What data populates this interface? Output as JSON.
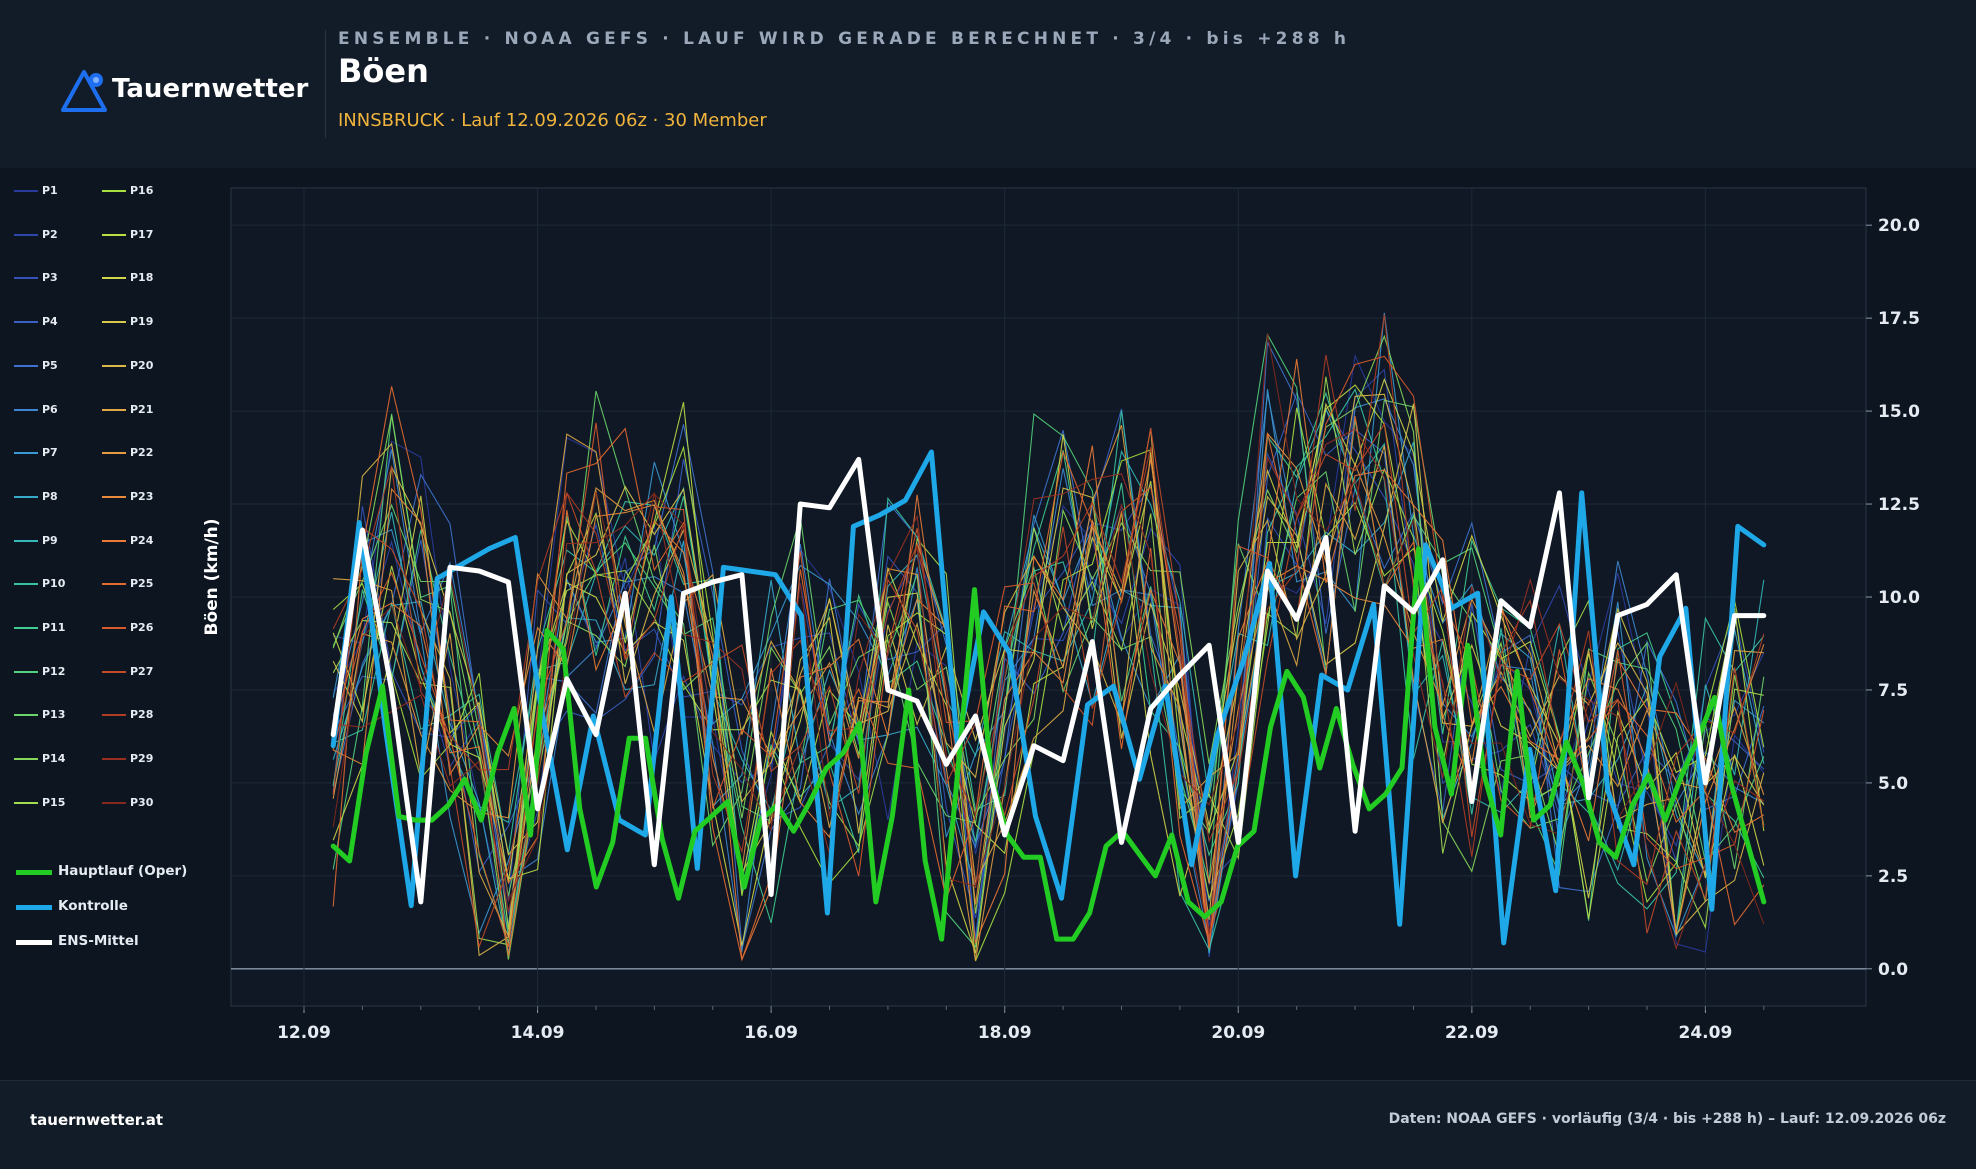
{
  "header": {
    "brand": "Tauernwetter",
    "kicker": "ENSEMBLE · NOAA GEFS · LAUF WIRD GERADE BERECHNET · 3/4 · bis +288 h",
    "title": "Böen",
    "subtitle": "INNSBRUCK · Lauf 12.09.2026 06z · 30 Member"
  },
  "colors": {
    "background": "#0d1520",
    "header_bg": "#121c29",
    "accent_orange": "#f0b43c",
    "oper": "#22cc22",
    "control": "#1fa8e8",
    "mean": "#ffffff",
    "logo_blue": "#1e6ff0"
  },
  "icons": {
    "logo": "triangle-logo-icon"
  },
  "footer": {
    "left": "tauernwetter.at",
    "right": "Daten: NOAA GEFS · vorläufig (3/4 · bis +288 h) – Lauf: 12.09.2026 06z"
  },
  "chart_data": {
    "type": "line",
    "x_unit": "hours since 12.09.2026 06z",
    "ylabel": "Böen (km/h)",
    "ylim": [
      -1,
      21
    ],
    "xlim": [
      -21,
      315
    ],
    "yticks": [
      "0.0",
      "2.5",
      "5.0",
      "7.5",
      "10.0",
      "12.5",
      "15.0",
      "17.5",
      "20.0"
    ],
    "ytick_values": [
      0,
      2.5,
      5,
      7.5,
      10,
      12.5,
      15,
      17.5,
      20
    ],
    "xticks": [
      "12.09",
      "14.09",
      "16.09",
      "18.09",
      "20.09",
      "22.09",
      "24.09"
    ],
    "xtick_values": [
      -6,
      42,
      90,
      138,
      186,
      234,
      282
    ],
    "grid": true,
    "legend_position": "left",
    "members": [
      "P1",
      "P2",
      "P3",
      "P4",
      "P5",
      "P6",
      "P7",
      "P8",
      "P9",
      "P10",
      "P11",
      "P12",
      "P13",
      "P14",
      "P15",
      "P16",
      "P17",
      "P18",
      "P19",
      "P20",
      "P21",
      "P22",
      "P23",
      "P24",
      "P25",
      "P26",
      "P27",
      "P28",
      "P29",
      "P30"
    ],
    "member_colors": [
      "#2a3a9a",
      "#2f46aa",
      "#3452b8",
      "#3a60c4",
      "#3e72cc",
      "#3e86d2",
      "#3b98d2",
      "#37aacc",
      "#34b8b8",
      "#38c4a4",
      "#40cc90",
      "#52d07c",
      "#6ad46a",
      "#86d85a",
      "#a2dc50",
      "#a8e040",
      "#bede46",
      "#d0d648",
      "#d8c84a",
      "#dcb848",
      "#e0a844",
      "#e49a40",
      "#e88a3c",
      "#ea7a36",
      "#e46a30",
      "#d85a2c",
      "#c44a28",
      "#b03c24",
      "#983022",
      "#82281e"
    ],
    "series": [
      {
        "name": "Hauptlauf (Oper)",
        "values": [
          3.3,
          2.9,
          5.8,
          7.6,
          4.1,
          4.0,
          4.0,
          4.4,
          5.1,
          4.0,
          5.8,
          7.0,
          3.6,
          9.1,
          8.6,
          4.3,
          2.2,
          3.4,
          6.2,
          6.2,
          3.5,
          1.9,
          3.7,
          4.1,
          4.5,
          2.2,
          4.0,
          4.4,
          3.7,
          4.5,
          5.4,
          5.8,
          6.6,
          1.8,
          4.1,
          7.5,
          2.9,
          0.8,
          5.4,
          10.2,
          5.2,
          3.6,
          3.0,
          3.0,
          0.8,
          0.8,
          1.5,
          3.3,
          3.7,
          3.1,
          2.5,
          3.6,
          1.8,
          1.4,
          1.8,
          3.3,
          3.7,
          6.5,
          8.0,
          7.3,
          5.4,
          7.0,
          5.5,
          4.3,
          4.7,
          5.4,
          11.3,
          6.5,
          4.7,
          8.7,
          5.2,
          3.6,
          8.0,
          4.0,
          4.4,
          6.1,
          5.0,
          3.4,
          3.0,
          4.4,
          5.2,
          4.0,
          5.2,
          6.2,
          7.3,
          5.0,
          3.4,
          1.8
        ]
      },
      {
        "name": "Kontrolle",
        "values": [
          6.0,
          12.0,
          6.5,
          1.7,
          10.5,
          10.9,
          11.3,
          11.6,
          7.0,
          3.2,
          6.8,
          4.0,
          3.6,
          10.0,
          2.7,
          10.8,
          10.7,
          10.6,
          9.5,
          1.5,
          11.9,
          12.2,
          12.6,
          13.9,
          6.0,
          9.6,
          8.5,
          4.1,
          1.9,
          7.1,
          7.6,
          5.1,
          7.6,
          2.8,
          6.3,
          8.3,
          10.9,
          2.5,
          7.9,
          7.5,
          9.8,
          1.2,
          11.4,
          9.7,
          10.1,
          0.7,
          5.9,
          2.1,
          12.8,
          4.8,
          2.8,
          8.4,
          9.7,
          1.6,
          11.9,
          11.4
        ]
      },
      {
        "name": "ENS-Mittel",
        "values": [
          6.3,
          11.8,
          7.5,
          1.8,
          10.8,
          10.7,
          10.4,
          4.3,
          7.8,
          6.3,
          10.1,
          2.8,
          10.1,
          10.4,
          10.6,
          2.0,
          12.5,
          12.4,
          13.7,
          7.5,
          7.2,
          5.5,
          6.8,
          3.6,
          6.0,
          5.6,
          8.8,
          3.4,
          7.0,
          7.9,
          8.7,
          3.4,
          10.7,
          9.4,
          11.6,
          3.7,
          10.3,
          9.6,
          11.0,
          4.5,
          9.9,
          9.2,
          12.8,
          4.6,
          9.5,
          9.8,
          10.6,
          5.0,
          9.5,
          9.5
        ]
      }
    ]
  }
}
